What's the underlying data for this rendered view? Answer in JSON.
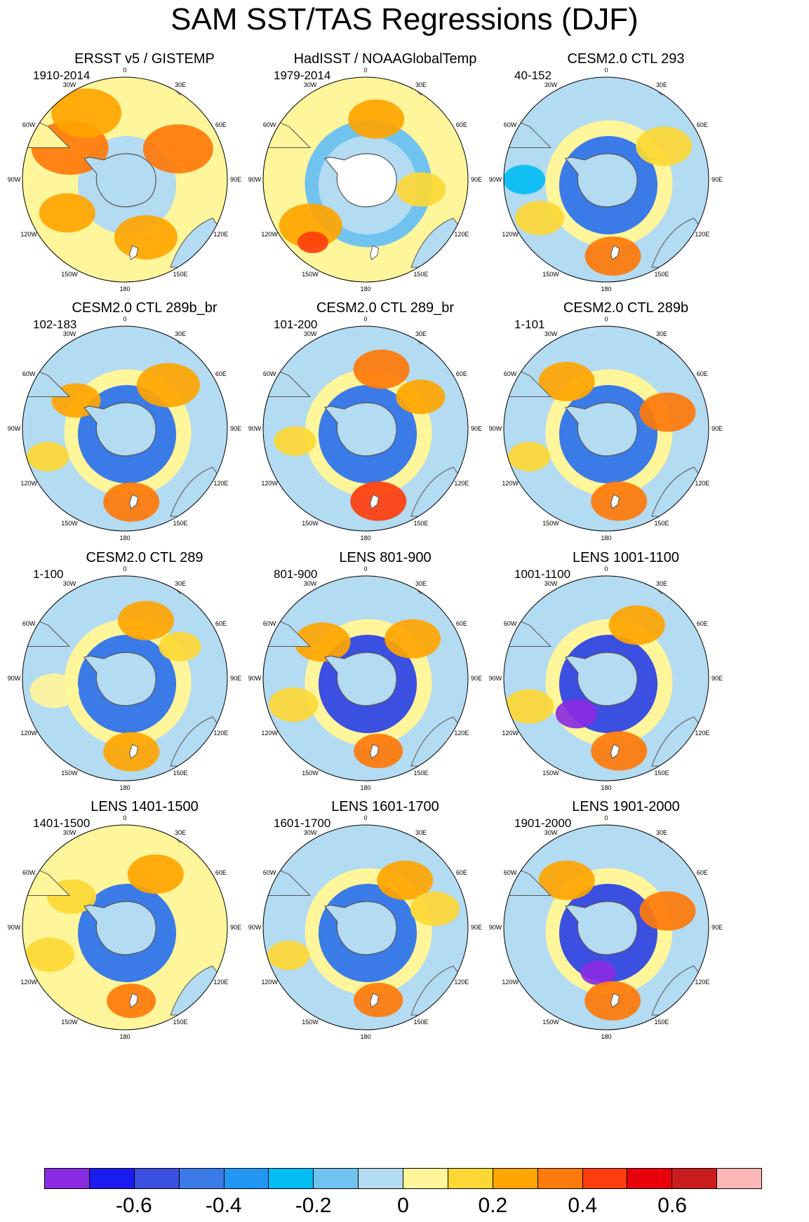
{
  "title": "SAM SST/TAS Regressions (DJF)",
  "lon_labels": [
    "0",
    "30E",
    "60E",
    "90E",
    "120E",
    "150E",
    "180",
    "150W",
    "120W",
    "90W",
    "60W",
    "30W"
  ],
  "panels": [
    {
      "title": "ERSST v5 / GISTEMP",
      "period": "1910-2014"
    },
    {
      "title": "HadISST / NOAAGlobalTemp",
      "period": "1979-2014"
    },
    {
      "title": "CESM2.0 CTL 293",
      "period": "40-152"
    },
    {
      "title": "CESM2.0 CTL 289b_br",
      "period": "102-183"
    },
    {
      "title": "CESM2.0 CTL 289_br",
      "period": "101-200"
    },
    {
      "title": "CESM2.0 CTL 289b",
      "period": "1-101"
    },
    {
      "title": "CESM2.0 CTL 289",
      "period": "1-100"
    },
    {
      "title": "LENS 801-900",
      "period": "801-900"
    },
    {
      "title": "LENS 1001-1100",
      "period": "1001-1100"
    },
    {
      "title": "LENS 1401-1500",
      "period": "1401-1500"
    },
    {
      "title": "LENS 1601-1700",
      "period": "1601-1700"
    },
    {
      "title": "LENS 1901-2000",
      "period": "1901-2000"
    }
  ],
  "colorbar": {
    "colors": [
      "#8a2be2",
      "#1c1cf0",
      "#3b4fe0",
      "#3a7be8",
      "#2196f3",
      "#03bdf5",
      "#70c3ee",
      "#b3dbf2",
      "#fff59a",
      "#fdd835",
      "#ffa500",
      "#ff7a0a",
      "#ff3d0d",
      "#e8000b",
      "#c91d1d",
      "#ffb6b6"
    ],
    "tick_labels": [
      "-0.6",
      "-0.4",
      "-0.2",
      "0",
      "0.2",
      "0.4",
      "0.6"
    ]
  }
}
